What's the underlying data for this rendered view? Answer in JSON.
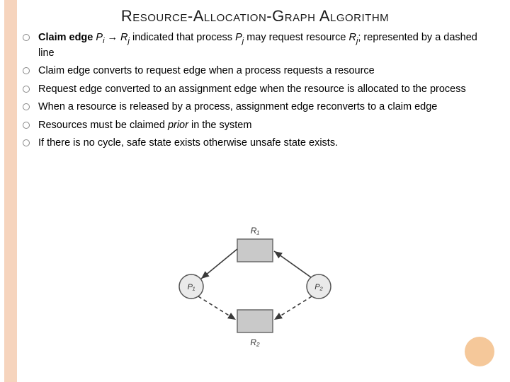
{
  "title": "Resource-Allocation-Graph Algorithm",
  "bullets": [
    {
      "html": "<span class='bold'>Claim edge</span> <span class='italic'>P<span class='sub'>i</span></span> → <span class='italic'>R<span class='sub'>j</span></span> indicated that process <span class='italic'>P<span class='sub'>j</span></span> may request resource <span class='italic'>R<span class='sub'>j</span></span>; represented by a dashed line"
    },
    {
      "html": "Claim edge converts to request edge when a process requests a resource"
    },
    {
      "html": "Request edge converted to an assignment edge when the  resource is allocated to the process"
    },
    {
      "html": "When a resource is released by a process, assignment edge reconverts to a claim edge"
    },
    {
      "html": "Resources must be claimed <span class='italic'>prior</span> in the system"
    },
    {
      "html": "If there is no cycle, safe state exists otherwise unsafe state exists."
    }
  ],
  "diagram": {
    "r1_label": "R₁",
    "r2_label": "R₂",
    "p1_label": "P₁",
    "p2_label": "P₂",
    "colors": {
      "node_fill": "#c9c9c9",
      "node_stroke": "#6a6a6a",
      "circle_fill": "#eaeaea",
      "circle_stroke": "#555",
      "edge": "#3a3a3a",
      "text": "#333"
    }
  },
  "style": {
    "accent_stripe": "#f6d4bd",
    "corner_circle": "#f5c89a"
  }
}
